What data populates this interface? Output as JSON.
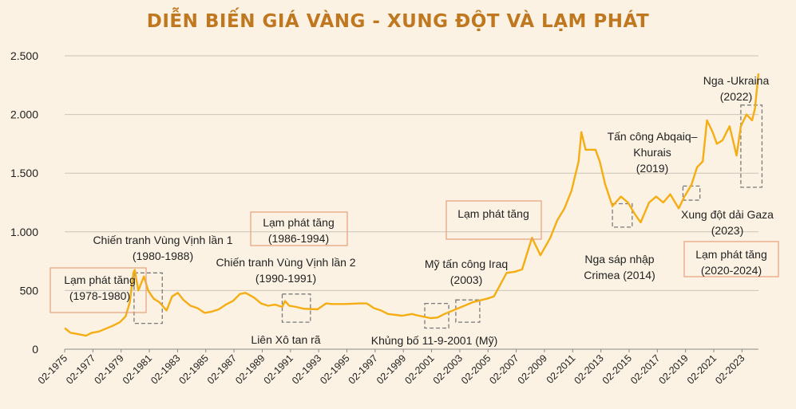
{
  "colors": {
    "background": "#fbf2e3",
    "title": "#c07820",
    "line": "#f5ad14",
    "grid": "#c9c3b8",
    "orange_box": "#e8a07a",
    "gray_box": "#7a7a7a"
  },
  "chart_data": {
    "type": "line",
    "title": "DIỄN BIẾN GIÁ VÀNG - XUNG ĐỘT VÀ LẠM PHÁT",
    "xlabel": "",
    "ylabel": "",
    "ylim": [
      0,
      2500
    ],
    "yticks": [
      0,
      500,
      1000,
      1500,
      2000,
      2500
    ],
    "ytick_labels": [
      "0",
      "500",
      "1.000",
      "1.500",
      "2.000",
      "2.500"
    ],
    "xlim": [
      1975.083,
      2024.25
    ],
    "xticks": [
      1975,
      1977,
      1979,
      1981,
      1983,
      1985,
      1987,
      1989,
      1991,
      1993,
      1995,
      1997,
      1999,
      2001,
      2003,
      2005,
      2007,
      2009,
      2011,
      2013,
      2015,
      2017,
      2019,
      2021,
      2023
    ],
    "xtick_labels": [
      "02-1975",
      "02-1977",
      "02-1979",
      "02-1981",
      "02-1983",
      "02-1985",
      "02-1987",
      "02-1989",
      "02-1991",
      "02-1993",
      "02-1995",
      "02-1997",
      "02-1999",
      "02-2001",
      "02-2003",
      "02-2005",
      "02-2007",
      "02-2009",
      "02-2011",
      "02-2013",
      "02-2015",
      "02-2017",
      "02-2019",
      "02-2021",
      "02-2023"
    ],
    "grid": "horizontal",
    "series": [
      {
        "x": [
          1975.083,
          1975.5,
          1976.0,
          1976.6,
          1977.0,
          1977.5,
          1978.0,
          1978.5,
          1979.0,
          1979.4,
          1979.7,
          1979.95,
          1980.05,
          1980.3,
          1980.7,
          1981.0,
          1981.4,
          1981.8,
          1982.3,
          1982.7,
          1983.1,
          1983.5,
          1984.0,
          1984.5,
          1985.0,
          1985.5,
          1986.0,
          1986.5,
          1987.0,
          1987.5,
          1987.9,
          1988.5,
          1989.0,
          1989.5,
          1990.0,
          1990.5,
          1990.7,
          1991.0,
          1991.5,
          1992.0,
          1993.0,
          1993.6,
          1994.0,
          1995.0,
          1996.0,
          1996.5,
          1997.0,
          1997.5,
          1998.0,
          1999.0,
          1999.7,
          2000.0,
          2001.0,
          2001.5,
          2002.0,
          2003.0,
          2004.0,
          2005.0,
          2005.5,
          2006.0,
          2006.4,
          2007.0,
          2007.5,
          2008.2,
          2008.8,
          2009.5,
          2010.0,
          2010.5,
          2011.0,
          2011.5,
          2011.7,
          2012.0,
          2012.7,
          2013.0,
          2013.4,
          2013.9,
          2014.5,
          2015.0,
          2015.5,
          2015.9,
          2016.5,
          2017.0,
          2017.5,
          2018.0,
          2018.6,
          2019.0,
          2019.5,
          2019.9,
          2020.3,
          2020.6,
          2021.0,
          2021.3,
          2021.7,
          2022.2,
          2022.7,
          2023.0,
          2023.4,
          2023.8,
          2024.0,
          2024.25
        ],
        "values": [
          180,
          140,
          130,
          115,
          140,
          150,
          175,
          200,
          230,
          280,
          400,
          650,
          675,
          500,
          620,
          500,
          430,
          400,
          330,
          450,
          480,
          420,
          370,
          350,
          310,
          320,
          340,
          380,
          410,
          470,
          480,
          440,
          390,
          370,
          380,
          360,
          410,
          370,
          360,
          345,
          340,
          390,
          385,
          385,
          390,
          390,
          350,
          330,
          300,
          285,
          300,
          290,
          265,
          270,
          300,
          350,
          400,
          430,
          450,
          560,
          650,
          660,
          680,
          950,
          800,
          950,
          1100,
          1200,
          1350,
          1600,
          1850,
          1700,
          1700,
          1600,
          1400,
          1220,
          1300,
          1250,
          1150,
          1080,
          1250,
          1300,
          1250,
          1320,
          1200,
          1300,
          1400,
          1550,
          1600,
          1950,
          1850,
          1750,
          1780,
          1900,
          1650,
          1900,
          2000,
          1950,
          2050,
          2350
        ]
      }
    ],
    "annotations": [
      {
        "text": "Lạm phát tăng\n(1978-1980)",
        "box": "orange"
      },
      {
        "text": "Chiến tranh Vùng Vịnh lần 1\n(1980-1988)",
        "box": "none"
      },
      {
        "text": "Lạm phát tăng\n(1986-1994)",
        "box": "orange"
      },
      {
        "text": "Chiến tranh Vùng Vịnh lần 2\n(1990-1991)",
        "box": "none"
      },
      {
        "text": "Liên Xô tan rã",
        "box": "none"
      },
      {
        "text": "Lạm phát tăng",
        "box": "orange"
      },
      {
        "text": "Mỹ tấn công Iraq\n(2003)",
        "box": "none"
      },
      {
        "text": "Khủng bố 11-9-2001 (Mỹ)",
        "box": "none"
      },
      {
        "text": "Nga sáp nhập\nCrimea (2014)",
        "box": "none"
      },
      {
        "text": "Tấn công Abqaiq–\nKhurais\n(2019)",
        "box": "none"
      },
      {
        "text": "Xung đột dải Gaza\n(2023)",
        "box": "none"
      },
      {
        "text": "Lạm phát tăng\n(2020-2024)",
        "box": "orange"
      },
      {
        "text": "Nga -Ukraina\n(2022)",
        "box": "none"
      }
    ],
    "highlight_ranges": [
      {
        "x": [
          1980.0,
          1982.0
        ],
        "y": [
          220,
          650
        ]
      },
      {
        "x": [
          1990.5,
          1992.5
        ],
        "y": [
          230,
          470
        ]
      },
      {
        "x": [
          2000.6,
          2002.3
        ],
        "y": [
          180,
          390
        ]
      },
      {
        "x": [
          2002.8,
          2004.5
        ],
        "y": [
          230,
          420
        ]
      },
      {
        "x": [
          2013.9,
          2015.3
        ],
        "y": [
          1040,
          1240
        ]
      },
      {
        "x": [
          2018.9,
          2020.1
        ],
        "y": [
          1270,
          1390
        ]
      },
      {
        "x": [
          2023.0,
          2024.5
        ],
        "y": [
          1380,
          2080
        ]
      }
    ]
  }
}
